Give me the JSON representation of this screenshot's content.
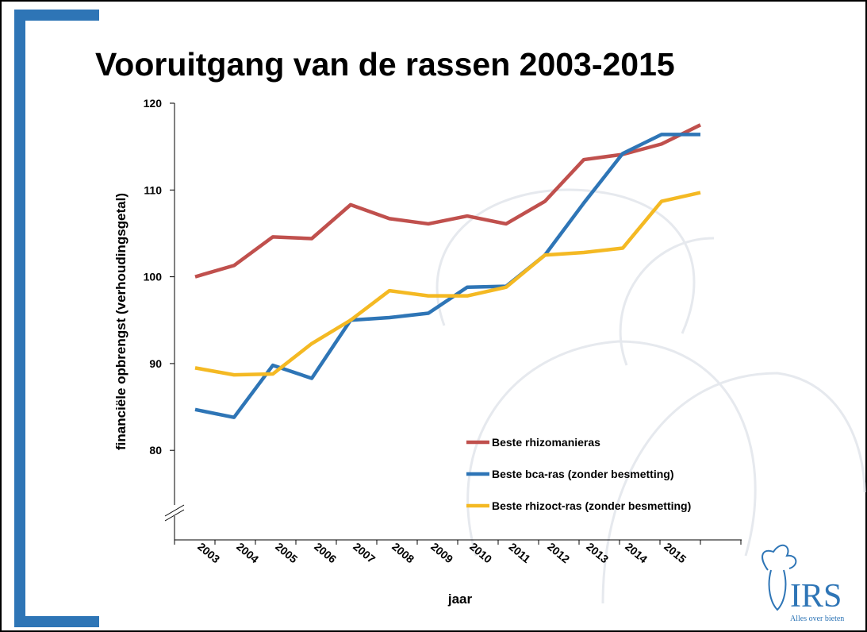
{
  "chart_data": {
    "type": "line",
    "title": "Vooruitgang van de rassen 2003-2015",
    "y_label": "financiële opbrengst (verhoudingsgetal)",
    "x_label": "jaar",
    "categories": [
      "2003",
      "2004",
      "2005",
      "2006",
      "2007",
      "2008",
      "2009",
      "2010",
      "2011",
      "2012",
      "2013",
      "2014",
      "2015",
      null
    ],
    "series": [
      {
        "name": "Beste rhizomanieras",
        "color": "#c0504d",
        "values": [
          100,
          101.3,
          104.6,
          104.4,
          108.3,
          106.7,
          106.1,
          107,
          106.1,
          108.7,
          113.5,
          114.1,
          115.3,
          117.5
        ]
      },
      {
        "name": "Beste bca-ras (zonder besmetting)",
        "color": "#2e75b6",
        "values": [
          84.7,
          83.8,
          89.8,
          88.3,
          95,
          95.3,
          95.8,
          98.8,
          98.9,
          102.5,
          108.5,
          114.2,
          116.4,
          116.4
        ]
      },
      {
        "name": "Beste rhizoct-ras (zonder besmetting)",
        "color": "#f4b923",
        "values": [
          89.5,
          88.7,
          88.8,
          92.3,
          95,
          98.4,
          97.8,
          97.8,
          98.8,
          102.5,
          102.8,
          103.3,
          108.7,
          109.7
        ]
      }
    ],
    "ylim": [
      70,
      120
    ],
    "yticks": [
      80,
      90,
      100,
      110,
      120
    ],
    "grid": false
  },
  "logo": {
    "name": "IRS",
    "tagline": "Alles over bieten"
  }
}
